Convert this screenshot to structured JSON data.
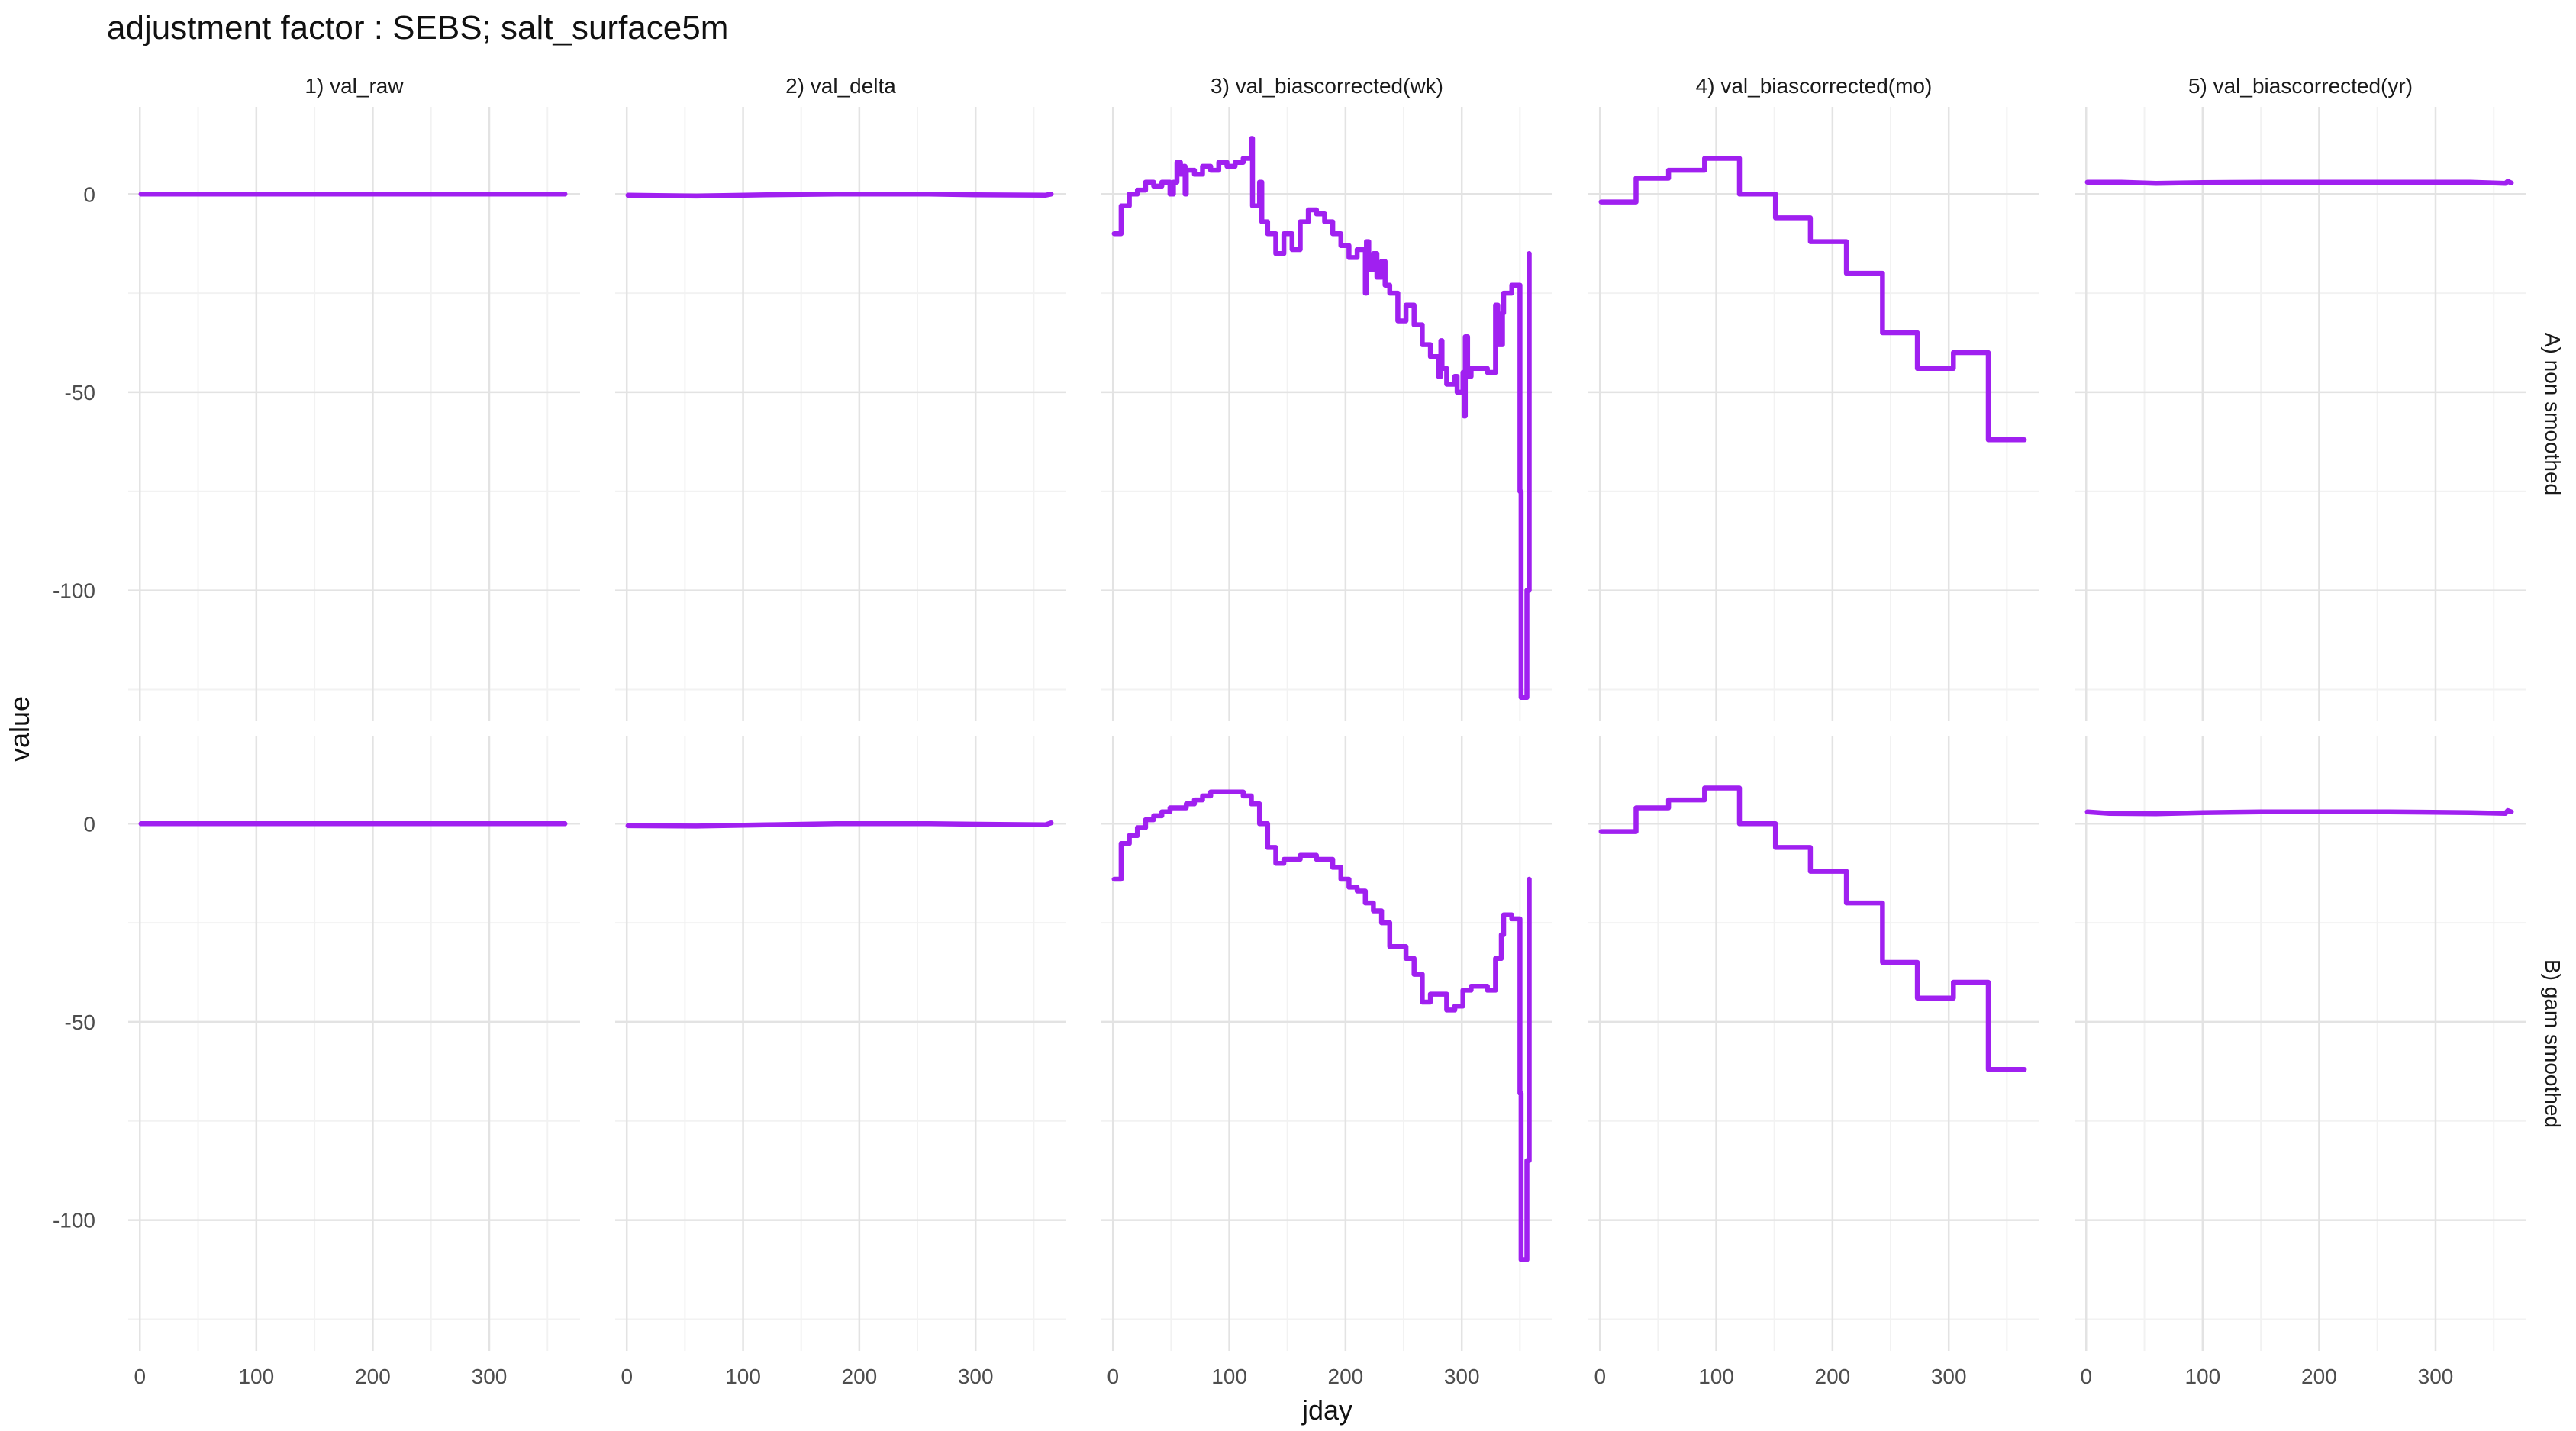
{
  "chart_data": {
    "type": "line",
    "title": "adjustment factor : SEBS; salt_surface5m",
    "xlabel": "jday",
    "ylabel": "value",
    "xlim": [
      -10,
      378
    ],
    "ylim": [
      -133,
      22
    ],
    "x_ticks": [
      0,
      100,
      200,
      300
    ],
    "y_ticks": [
      0,
      -50,
      -100
    ],
    "grid": true,
    "line_color": "#A020F0",
    "columns": [
      "1) val_raw",
      "2) val_delta",
      "3) val_biascorrected(wk)",
      "4) val_biascorrected(mo)",
      "5) val_biascorrected(yr)"
    ],
    "rows": [
      "A) non smoothed",
      "B) gam smoothed"
    ],
    "panels": [
      {
        "row": 0,
        "col": 0,
        "points": [
          [
            1,
            0
          ],
          [
            365,
            0
          ]
        ]
      },
      {
        "row": 0,
        "col": 1,
        "points": [
          [
            1,
            -0.3
          ],
          [
            60,
            -0.5
          ],
          [
            120,
            -0.2
          ],
          [
            180,
            0
          ],
          [
            260,
            0
          ],
          [
            300,
            -0.2
          ],
          [
            360,
            -0.3
          ],
          [
            365,
            0
          ]
        ]
      },
      {
        "row": 0,
        "col": 2,
        "points": [
          [
            1,
            -10
          ],
          [
            7,
            -10
          ],
          [
            7,
            -3
          ],
          [
            14,
            -3
          ],
          [
            14,
            0
          ],
          [
            21,
            0
          ],
          [
            21,
            1
          ],
          [
            28,
            1
          ],
          [
            28,
            3
          ],
          [
            35,
            3
          ],
          [
            35,
            2
          ],
          [
            42,
            2
          ],
          [
            42,
            3
          ],
          [
            49,
            3
          ],
          [
            49,
            0
          ],
          [
            52,
            0
          ],
          [
            52,
            3
          ],
          [
            55,
            3
          ],
          [
            55,
            8
          ],
          [
            58,
            8
          ],
          [
            58,
            5
          ],
          [
            61,
            5
          ],
          [
            61,
            7
          ],
          [
            62,
            7
          ],
          [
            62,
            0
          ],
          [
            63,
            0
          ],
          [
            63,
            6
          ],
          [
            70,
            6
          ],
          [
            70,
            5
          ],
          [
            77,
            5
          ],
          [
            77,
            7
          ],
          [
            84,
            7
          ],
          [
            84,
            6
          ],
          [
            91,
            6
          ],
          [
            91,
            8
          ],
          [
            98,
            8
          ],
          [
            98,
            7
          ],
          [
            105,
            7
          ],
          [
            105,
            8
          ],
          [
            112,
            8
          ],
          [
            112,
            9
          ],
          [
            119,
            9
          ],
          [
            119,
            14
          ],
          [
            120,
            14
          ],
          [
            120,
            -3
          ],
          [
            126,
            -3
          ],
          [
            126,
            3
          ],
          [
            128,
            3
          ],
          [
            128,
            -7
          ],
          [
            133,
            -7
          ],
          [
            133,
            -10
          ],
          [
            140,
            -10
          ],
          [
            140,
            -15
          ],
          [
            147,
            -15
          ],
          [
            147,
            -10
          ],
          [
            154,
            -10
          ],
          [
            154,
            -14
          ],
          [
            161,
            -14
          ],
          [
            161,
            -7
          ],
          [
            168,
            -7
          ],
          [
            168,
            -4
          ],
          [
            175,
            -4
          ],
          [
            175,
            -5
          ],
          [
            182,
            -5
          ],
          [
            182,
            -7
          ],
          [
            189,
            -7
          ],
          [
            189,
            -10
          ],
          [
            196,
            -10
          ],
          [
            196,
            -13
          ],
          [
            203,
            -13
          ],
          [
            203,
            -16
          ],
          [
            210,
            -16
          ],
          [
            210,
            -14
          ],
          [
            217,
            -14
          ],
          [
            217,
            -25
          ],
          [
            218,
            -25
          ],
          [
            218,
            -12
          ],
          [
            220,
            -12
          ],
          [
            220,
            -19
          ],
          [
            224,
            -19
          ],
          [
            224,
            -15
          ],
          [
            227,
            -15
          ],
          [
            227,
            -21
          ],
          [
            231,
            -21
          ],
          [
            231,
            -17
          ],
          [
            234,
            -17
          ],
          [
            234,
            -23
          ],
          [
            238,
            -23
          ],
          [
            238,
            -25
          ],
          [
            245,
            -25
          ],
          [
            245,
            -32
          ],
          [
            252,
            -32
          ],
          [
            252,
            -28
          ],
          [
            259,
            -28
          ],
          [
            259,
            -33
          ],
          [
            266,
            -33
          ],
          [
            266,
            -38
          ],
          [
            273,
            -38
          ],
          [
            273,
            -41
          ],
          [
            280,
            -41
          ],
          [
            280,
            -46
          ],
          [
            282,
            -46
          ],
          [
            282,
            -37
          ],
          [
            283,
            -37
          ],
          [
            283,
            -44
          ],
          [
            287,
            -44
          ],
          [
            287,
            -48
          ],
          [
            294,
            -48
          ],
          [
            294,
            -46
          ],
          [
            296,
            -46
          ],
          [
            296,
            -50
          ],
          [
            301,
            -50
          ],
          [
            301,
            -45
          ],
          [
            302,
            -45
          ],
          [
            302,
            -56
          ],
          [
            303,
            -56
          ],
          [
            303,
            -36
          ],
          [
            305,
            -36
          ],
          [
            305,
            -46
          ],
          [
            308,
            -46
          ],
          [
            308,
            -44
          ],
          [
            315,
            -44
          ],
          [
            315,
            -44
          ],
          [
            322,
            -44
          ],
          [
            322,
            -45
          ],
          [
            329,
            -45
          ],
          [
            329,
            -28
          ],
          [
            331,
            -28
          ],
          [
            331,
            -38
          ],
          [
            335,
            -38
          ],
          [
            335,
            -30
          ],
          [
            336,
            -30
          ],
          [
            336,
            -25
          ],
          [
            343,
            -25
          ],
          [
            343,
            -23
          ],
          [
            350,
            -23
          ],
          [
            350,
            -75
          ],
          [
            351,
            -75
          ],
          [
            351,
            -127
          ],
          [
            356,
            -127
          ],
          [
            356,
            -100
          ],
          [
            358,
            -100
          ],
          [
            358,
            -15
          ]
        ]
      },
      {
        "row": 0,
        "col": 3,
        "points": [
          [
            1,
            -2
          ],
          [
            31,
            -2
          ],
          [
            31,
            4
          ],
          [
            59,
            4
          ],
          [
            59,
            6
          ],
          [
            90,
            6
          ],
          [
            90,
            9
          ],
          [
            120,
            9
          ],
          [
            120,
            0
          ],
          [
            151,
            0
          ],
          [
            151,
            -6
          ],
          [
            181,
            -6
          ],
          [
            181,
            -12
          ],
          [
            212,
            -12
          ],
          [
            212,
            -20
          ],
          [
            243,
            -20
          ],
          [
            243,
            -35
          ],
          [
            273,
            -35
          ],
          [
            273,
            -44
          ],
          [
            304,
            -44
          ],
          [
            304,
            -40
          ],
          [
            334,
            -40
          ],
          [
            334,
            -62
          ],
          [
            365,
            -62
          ]
        ]
      },
      {
        "row": 0,
        "col": 4,
        "points": [
          [
            1,
            3
          ],
          [
            30,
            3
          ],
          [
            60,
            2.7
          ],
          [
            100,
            2.9
          ],
          [
            160,
            3
          ],
          [
            260,
            3
          ],
          [
            330,
            3
          ],
          [
            360,
            2.7
          ],
          [
            362,
            3.2
          ],
          [
            365,
            2.8
          ]
        ]
      },
      {
        "row": 1,
        "col": 0,
        "points": [
          [
            1,
            0
          ],
          [
            365,
            0
          ]
        ]
      },
      {
        "row": 1,
        "col": 1,
        "points": [
          [
            1,
            -0.5
          ],
          [
            60,
            -0.6
          ],
          [
            120,
            -0.3
          ],
          [
            180,
            0
          ],
          [
            260,
            0
          ],
          [
            320,
            -0.2
          ],
          [
            360,
            -0.3
          ],
          [
            365,
            0.2
          ]
        ]
      },
      {
        "row": 1,
        "col": 2,
        "points": [
          [
            1,
            -14
          ],
          [
            7,
            -14
          ],
          [
            7,
            -5
          ],
          [
            14,
            -5
          ],
          [
            14,
            -3
          ],
          [
            21,
            -3
          ],
          [
            21,
            -1
          ],
          [
            28,
            -1
          ],
          [
            28,
            1
          ],
          [
            35,
            1
          ],
          [
            35,
            2
          ],
          [
            42,
            2
          ],
          [
            42,
            3
          ],
          [
            49,
            3
          ],
          [
            49,
            4
          ],
          [
            63,
            4
          ],
          [
            63,
            5
          ],
          [
            70,
            5
          ],
          [
            70,
            6
          ],
          [
            77,
            6
          ],
          [
            77,
            7
          ],
          [
            84,
            7
          ],
          [
            84,
            8
          ],
          [
            112,
            8
          ],
          [
            112,
            7
          ],
          [
            119,
            7
          ],
          [
            119,
            5
          ],
          [
            126,
            5
          ],
          [
            126,
            0
          ],
          [
            133,
            0
          ],
          [
            133,
            -6
          ],
          [
            140,
            -6
          ],
          [
            140,
            -10
          ],
          [
            147,
            -10
          ],
          [
            147,
            -9
          ],
          [
            161,
            -9
          ],
          [
            161,
            -8
          ],
          [
            175,
            -8
          ],
          [
            175,
            -9
          ],
          [
            189,
            -9
          ],
          [
            189,
            -11
          ],
          [
            196,
            -11
          ],
          [
            196,
            -14
          ],
          [
            203,
            -14
          ],
          [
            203,
            -16
          ],
          [
            210,
            -16
          ],
          [
            210,
            -17
          ],
          [
            217,
            -17
          ],
          [
            217,
            -20
          ],
          [
            224,
            -20
          ],
          [
            224,
            -22
          ],
          [
            231,
            -22
          ],
          [
            231,
            -25
          ],
          [
            238,
            -25
          ],
          [
            238,
            -31
          ],
          [
            245,
            -31
          ],
          [
            245,
            -31
          ],
          [
            252,
            -31
          ],
          [
            252,
            -34
          ],
          [
            259,
            -34
          ],
          [
            259,
            -38
          ],
          [
            266,
            -38
          ],
          [
            266,
            -45
          ],
          [
            273,
            -45
          ],
          [
            273,
            -43
          ],
          [
            287,
            -43
          ],
          [
            287,
            -47
          ],
          [
            294,
            -47
          ],
          [
            294,
            -46
          ],
          [
            301,
            -46
          ],
          [
            301,
            -42
          ],
          [
            308,
            -42
          ],
          [
            308,
            -41
          ],
          [
            322,
            -41
          ],
          [
            322,
            -42
          ],
          [
            329,
            -42
          ],
          [
            329,
            -34
          ],
          [
            334,
            -34
          ],
          [
            334,
            -28
          ],
          [
            336,
            -28
          ],
          [
            336,
            -23
          ],
          [
            343,
            -23
          ],
          [
            343,
            -24
          ],
          [
            350,
            -24
          ],
          [
            350,
            -68
          ],
          [
            351,
            -68
          ],
          [
            351,
            -110
          ],
          [
            356,
            -110
          ],
          [
            356,
            -85
          ],
          [
            358,
            -85
          ],
          [
            358,
            -14
          ]
        ]
      },
      {
        "row": 1,
        "col": 3,
        "points": [
          [
            1,
            -2
          ],
          [
            31,
            -2
          ],
          [
            31,
            4
          ],
          [
            59,
            4
          ],
          [
            59,
            6
          ],
          [
            90,
            6
          ],
          [
            90,
            9
          ],
          [
            120,
            9
          ],
          [
            120,
            0
          ],
          [
            151,
            0
          ],
          [
            151,
            -6
          ],
          [
            181,
            -6
          ],
          [
            181,
            -12
          ],
          [
            212,
            -12
          ],
          [
            212,
            -20
          ],
          [
            243,
            -20
          ],
          [
            243,
            -35
          ],
          [
            273,
            -35
          ],
          [
            273,
            -44
          ],
          [
            304,
            -44
          ],
          [
            304,
            -40
          ],
          [
            334,
            -40
          ],
          [
            334,
            -62
          ],
          [
            365,
            -62
          ]
        ]
      },
      {
        "row": 1,
        "col": 4,
        "points": [
          [
            1,
            3
          ],
          [
            20,
            2.6
          ],
          [
            60,
            2.5
          ],
          [
            100,
            2.8
          ],
          [
            150,
            3
          ],
          [
            260,
            3
          ],
          [
            330,
            2.8
          ],
          [
            360,
            2.6
          ],
          [
            362,
            3.3
          ],
          [
            365,
            3
          ]
        ]
      }
    ]
  }
}
